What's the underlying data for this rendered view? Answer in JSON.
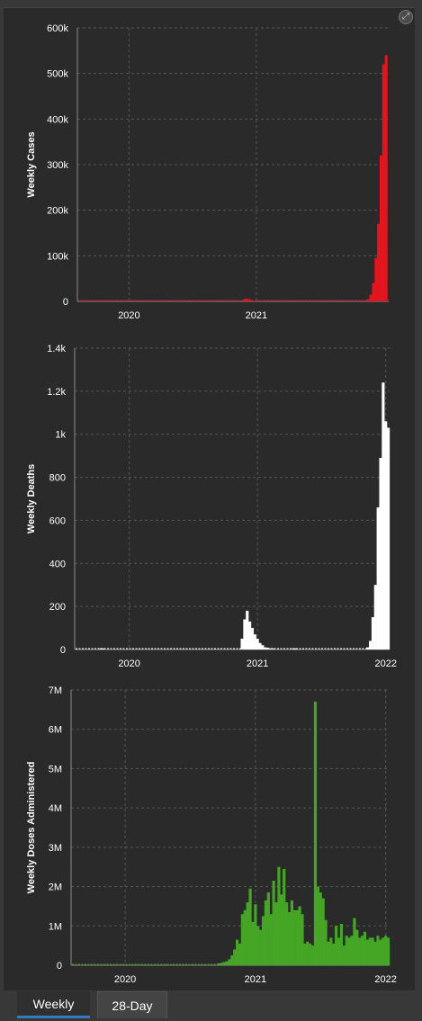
{
  "tabs": [
    {
      "label": "Weekly",
      "active": true
    },
    {
      "label": "28-Day",
      "active": false
    }
  ],
  "expand_icon": "expand-icon",
  "colors": {
    "cases": "#e3151d",
    "deaths": "#ffffff",
    "doses": "#45a524",
    "grid": "#555555",
    "axis_text": "#ffffff"
  },
  "chart_data": [
    {
      "type": "bar",
      "ylabel": "Weekly Cases",
      "ylim": [
        0,
        600000
      ],
      "yticks": [
        0,
        100000,
        200000,
        300000,
        400000,
        500000,
        600000
      ],
      "ytick_labels": [
        "0",
        "100k",
        "200k",
        "300k",
        "400k",
        "500k",
        "600k"
      ],
      "xlim": [
        2019.594,
        2022.04
      ],
      "xticks": [
        2020,
        2021
      ],
      "xtick_labels": [
        "2020",
        "2021"
      ],
      "grid": true,
      "x": [
        2020.9,
        2020.92,
        2020.94,
        2020.96,
        2020.98,
        2021.88,
        2021.9,
        2021.92,
        2021.94,
        2021.96,
        2021.98,
        2022.0,
        2022.02
      ],
      "values": [
        4000,
        6000,
        5000,
        3000,
        1000,
        5000,
        15000,
        40000,
        95000,
        170000,
        320000,
        520000,
        540000
      ]
    },
    {
      "type": "bar",
      "ylabel": "Weekly Deaths",
      "ylim": [
        0,
        1400
      ],
      "yticks": [
        0,
        200,
        400,
        600,
        800,
        1000,
        1200,
        1400
      ],
      "ytick_labels": [
        "0",
        "200",
        "400",
        "600",
        "800",
        "1k",
        "1.2k",
        "1.4k"
      ],
      "xlim": [
        2019.575,
        2022.03
      ],
      "xticks": [
        2020,
        2021,
        2022
      ],
      "xtick_labels": [
        "2020",
        "2021",
        "2022"
      ],
      "grid": true,
      "x": [
        2019.78,
        2019.8,
        2020.88,
        2020.9,
        2020.92,
        2020.94,
        2020.96,
        2020.98,
        2021.0,
        2021.02,
        2021.04,
        2021.06,
        2021.08,
        2021.1,
        2021.12,
        2021.28,
        2021.3,
        2021.86,
        2021.88,
        2021.9,
        2021.92,
        2021.94,
        2021.96,
        2021.98,
        2022.0,
        2022.02
      ],
      "values": [
        5,
        5,
        50,
        140,
        180,
        130,
        100,
        70,
        50,
        30,
        20,
        10,
        8,
        5,
        5,
        5,
        5,
        10,
        40,
        150,
        300,
        660,
        890,
        1240,
        1060,
        1030
      ]
    },
    {
      "type": "bar",
      "ylabel": "Weekly Doses Administered",
      "ylim": [
        0,
        7000000
      ],
      "yticks": [
        0,
        1000000,
        2000000,
        3000000,
        4000000,
        5000000,
        6000000,
        7000000
      ],
      "ytick_labels": [
        "0",
        "1M",
        "2M",
        "3M",
        "4M",
        "5M",
        "6M",
        "7M"
      ],
      "xlim": [
        2019.585,
        2022.03
      ],
      "xticks": [
        2020,
        2021,
        2022
      ],
      "xtick_labels": [
        "2020",
        "2021",
        "2022"
      ],
      "grid": true,
      "x": [
        2020.72,
        2020.74,
        2020.76,
        2020.78,
        2020.8,
        2020.82,
        2020.84,
        2020.86,
        2020.88,
        2020.9,
        2020.92,
        2020.94,
        2020.96,
        2020.98,
        2021.0,
        2021.02,
        2021.04,
        2021.06,
        2021.08,
        2021.1,
        2021.12,
        2021.14,
        2021.16,
        2021.18,
        2021.2,
        2021.22,
        2021.24,
        2021.26,
        2021.28,
        2021.3,
        2021.32,
        2021.34,
        2021.36,
        2021.38,
        2021.4,
        2021.42,
        2021.44,
        2021.46,
        2021.48,
        2021.5,
        2021.52,
        2021.54,
        2021.56,
        2021.58,
        2021.6,
        2021.62,
        2021.64,
        2021.66,
        2021.68,
        2021.7,
        2021.72,
        2021.74,
        2021.76,
        2021.78,
        2021.8,
        2021.82,
        2021.84,
        2021.86,
        2021.88,
        2021.9,
        2021.92,
        2021.94,
        2021.96,
        2021.98,
        2022.0,
        2022.02
      ],
      "values": [
        50000,
        60000,
        80000,
        100000,
        150000,
        250000,
        400000,
        650000,
        550000,
        1300000,
        1400000,
        1600000,
        1950000,
        1100000,
        1550000,
        1000000,
        900000,
        1250000,
        1650000,
        1850000,
        1300000,
        2150000,
        1600000,
        2500000,
        1800000,
        2450000,
        1600000,
        1350000,
        1650000,
        1400000,
        1400000,
        1500000,
        1300000,
        550000,
        600000,
        550000,
        500000,
        6700000,
        2000000,
        1850000,
        1700000,
        1150000,
        600000,
        700000,
        550000,
        1000000,
        700000,
        1050000,
        500000,
        750000,
        700000,
        750000,
        1200000,
        900000,
        700000,
        750000,
        850000,
        650000,
        700000,
        700000,
        600000,
        750000,
        650000,
        700000,
        750000,
        700000
      ]
    }
  ]
}
